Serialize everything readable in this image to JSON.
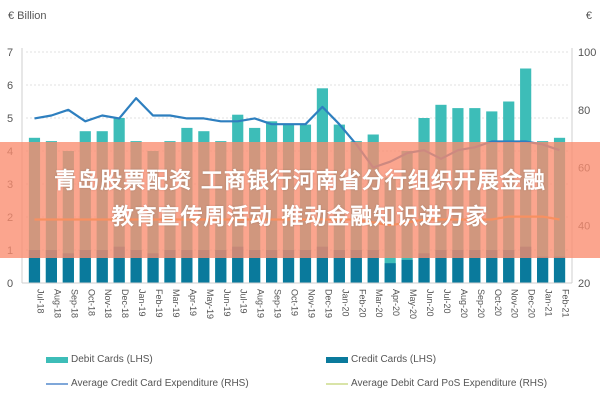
{
  "chart_data": {
    "type": "bar",
    "title": "",
    "unit_left": "€ Billion",
    "unit_right": "€",
    "xlabel": "",
    "ylabel_left": "€ Billion",
    "ylabel_right": "€",
    "ylim_left": [
      0,
      7
    ],
    "ylim_right": [
      20,
      100
    ],
    "yticks_left": [
      "0",
      "1",
      "2",
      "3",
      "4",
      "5",
      "6",
      "7"
    ],
    "yticks_right": [
      "20",
      "40",
      "60",
      "80",
      "100"
    ],
    "grid": true,
    "legend_position": "bottom",
    "categories": [
      "Jul-18",
      "Aug-18",
      "Sep-18",
      "Oct-18",
      "Nov-18",
      "Dec-18",
      "Jan-19",
      "Feb-19",
      "Mar-19",
      "Apr-19",
      "May-19",
      "Jun-19",
      "Jul-19",
      "Aug-19",
      "Sep-19",
      "Oct-19",
      "Nov-19",
      "Dec-19",
      "Jan-20",
      "Feb-20",
      "Mar-20",
      "Apr-20",
      "May-20",
      "Jun-20",
      "Jul-20",
      "Aug-20",
      "Sep-20",
      "Oct-20",
      "Nov-20",
      "Dec-20",
      "Jan-21",
      "Feb-21"
    ],
    "series": [
      {
        "name": "Debit Cards (LHS)",
        "axis": "left",
        "kind": "bar",
        "color": "#3dbdb8",
        "values": [
          4.4,
          4.3,
          4.0,
          4.6,
          4.6,
          5.0,
          4.3,
          4.0,
          4.3,
          4.7,
          4.6,
          4.3,
          5.1,
          4.7,
          4.9,
          4.8,
          4.8,
          5.9,
          4.8,
          4.3,
          4.5,
          3.2,
          4.0,
          5.0,
          5.4,
          5.3,
          5.3,
          5.2,
          5.5,
          6.5,
          4.3,
          4.4
        ]
      },
      {
        "name": "Credit Cards (LHS)",
        "axis": "left",
        "kind": "bar",
        "color": "#0a7a9c",
        "values": [
          1.0,
          1.0,
          0.9,
          1.0,
          1.0,
          1.1,
          1.0,
          0.9,
          1.0,
          1.0,
          1.0,
          1.0,
          1.1,
          1.0,
          1.0,
          1.0,
          1.0,
          1.1,
          1.0,
          1.0,
          1.0,
          0.6,
          0.7,
          0.9,
          1.0,
          1.0,
          1.0,
          1.0,
          1.0,
          1.1,
          0.8,
          0.8
        ]
      },
      {
        "name": "Average Credit Card Expenditure (RHS)",
        "axis": "right",
        "kind": "line",
        "color": "#2e7fbf",
        "values": [
          77,
          78,
          80,
          76,
          78,
          77,
          84,
          78,
          78,
          77,
          77,
          76,
          76,
          77,
          75,
          75,
          75,
          81,
          75,
          68,
          60,
          62,
          65,
          66,
          63,
          66,
          67,
          69,
          69,
          69,
          68,
          66
        ]
      },
      {
        "name": "Average Debit Card PoS Expenditure (RHS)",
        "axis": "right",
        "kind": "line",
        "color": "#f0a030",
        "values": [
          42,
          42,
          42,
          42,
          42,
          42,
          42,
          42,
          42,
          42,
          42,
          42,
          42,
          42,
          42,
          42,
          42,
          42,
          42,
          42,
          41,
          40,
          41,
          42,
          42,
          42,
          42,
          42,
          43,
          43,
          43,
          42
        ]
      }
    ]
  },
  "overlay": {
    "line1": "青岛股票配资 工商银行河南省分行组织开展金融",
    "line2": "教育宣传周活动 推动金融知识进万家"
  },
  "legend": {
    "debit": "Debit Cards (LHS)",
    "credit": "Credit Cards (LHS)",
    "avg_credit": "Average Credit Card Expenditure (RHS)",
    "avg_debit": "Average Debit Card PoS Expenditure (RHS)"
  },
  "colors": {
    "debit": "#3dbdb8",
    "credit": "#0a7a9c",
    "avg_credit": "#2e7fbf",
    "avg_debit": "#f0a030",
    "avg_debit_legend": "#d9e4a8",
    "overlay": "#fa8c6e"
  }
}
